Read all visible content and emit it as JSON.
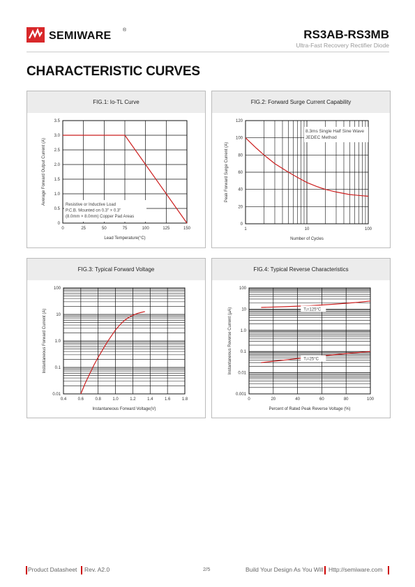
{
  "header": {
    "brand": "SEMIWARE",
    "reg_mark": "®",
    "part": "RS3AB-RS3MB",
    "subtitle": "Ultra-Fast Recovery Rectifier Diode"
  },
  "section_title": "CHARACTERISTIC CURVES",
  "colors": {
    "curve": "#cc1f1f",
    "brand_red": "#d8282a",
    "grid": "#111",
    "panel_header": "#ececec"
  },
  "chart_data": [
    {
      "type": "line",
      "title": "FIG.1: Io-TL Curve",
      "xlabel": "Lead Temperature(°C)",
      "ylabel": "Average Forward Output Current (A)",
      "xlim": [
        0,
        150
      ],
      "ylim": [
        0,
        3.5
      ],
      "x_ticks": [
        "0",
        "25",
        "50",
        "75",
        "100",
        "125",
        "150"
      ],
      "y_ticks": [
        "0",
        "0.5",
        "1.0",
        "1.5",
        "2.0",
        "2.5",
        "3.0",
        "3.5"
      ],
      "series": [
        {
          "x": [
            0,
            75,
            150
          ],
          "y": [
            3.0,
            3.0,
            0
          ]
        }
      ],
      "annotations": [
        "Resistive or Inductive Load",
        "P.C.B. Mounted on 0.3\" × 0.3\"",
        "(8.0mm × 8.0mm) Copper Pad Areas"
      ]
    },
    {
      "type": "line",
      "title": "FIG.2: Forward Surge Current Capability",
      "xlabel": "Number of Cycles",
      "ylabel": "Peak Forward Surge Current (A)",
      "xscale": "log",
      "xlim": [
        1,
        100
      ],
      "ylim": [
        0,
        120
      ],
      "x_ticks": [
        "1",
        "10",
        "100"
      ],
      "y_ticks": [
        "0",
        "20",
        "40",
        "60",
        "80",
        "100",
        "120"
      ],
      "series": [
        {
          "x": [
            1,
            1.5,
            2,
            3,
            5,
            7,
            10,
            15,
            20,
            30,
            50,
            70,
            100
          ],
          "y": [
            100,
            88,
            80,
            70,
            60,
            54,
            48,
            43,
            40,
            37,
            34,
            33,
            32
          ]
        }
      ],
      "annotations": [
        "8.3ms Single Half Sine Wave",
        "JEDEC Method"
      ]
    },
    {
      "type": "line",
      "title": "FIG.3: Typical Forward Voltage",
      "xlabel": "Instantaneous Forward Voltage(V)",
      "ylabel": "Instantaneous Forward Current (A)",
      "yscale": "log",
      "xlim": [
        0.4,
        1.8
      ],
      "ylim": [
        0.01,
        100
      ],
      "x_ticks": [
        "0.4",
        "0.6",
        "0.8",
        "1.0",
        "1.2",
        "1.4",
        "1.6",
        "1.8"
      ],
      "y_ticks": [
        "0.01",
        "0.1",
        "1.0",
        "10",
        "100"
      ],
      "series": [
        {
          "x": [
            0.6,
            0.65,
            0.7,
            0.75,
            0.8,
            0.85,
            0.9,
            0.95,
            1.0,
            1.05,
            1.1,
            1.15,
            1.2,
            1.25,
            1.3,
            1.34
          ],
          "y": [
            0.01,
            0.025,
            0.055,
            0.12,
            0.24,
            0.45,
            0.85,
            1.5,
            2.6,
            4.0,
            5.8,
            7.6,
            9.3,
            10.8,
            12.0,
            12.8
          ]
        }
      ]
    },
    {
      "type": "line",
      "title": "FIG.4: Typical Reverse Characteristics",
      "xlabel": "Percent of Rated Peak Reverse Voltage (%)",
      "ylabel": "Instantaneous Reverse Current (µA)",
      "yscale": "log",
      "xlim": [
        0,
        100
      ],
      "ylim": [
        0.001,
        100
      ],
      "x_ticks": [
        "0",
        "20",
        "40",
        "60",
        "80",
        "100"
      ],
      "y_ticks": [
        "0.001",
        "0.01",
        "0.1",
        "1.0",
        "10",
        "100"
      ],
      "series": [
        {
          "name": "Tⱼ=125°C",
          "x": [
            10,
            30,
            50,
            70,
            90,
            100
          ],
          "y": [
            12,
            13,
            14.5,
            17,
            21,
            24
          ]
        },
        {
          "name": "Tⱼ=25°C",
          "x": [
            10,
            30,
            50,
            70,
            90,
            100
          ],
          "y": [
            0.03,
            0.04,
            0.055,
            0.07,
            0.09,
            0.1
          ]
        }
      ]
    }
  ],
  "footer": {
    "left": "Product Datasheet",
    "rev": "Rev. A2.0",
    "page": "2/5",
    "slogan": "Build Your Design As You Will",
    "url": "Http://semiware.com"
  }
}
